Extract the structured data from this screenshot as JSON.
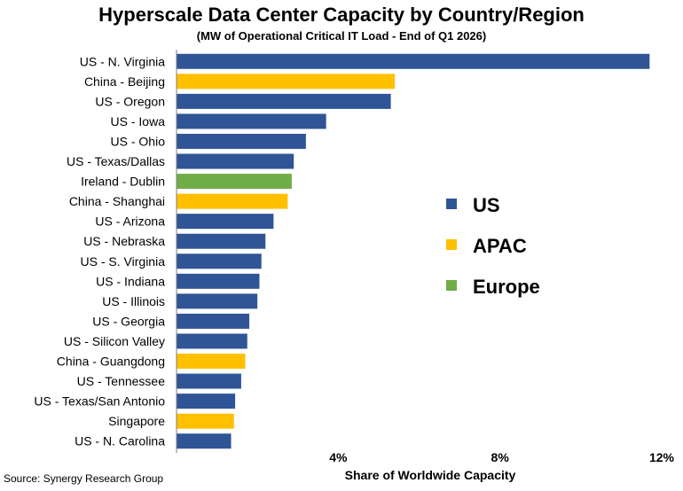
{
  "chart_data": {
    "type": "bar",
    "orientation": "horizontal",
    "title": "Hyperscale Data Center Capacity by Country/Region",
    "subtitle": "(MW of Operational Critical IT Load - End of Q1 2026)",
    "xlabel": "Share of Worldwide Capacity",
    "xlim": [
      0,
      12
    ],
    "x_ticks": [
      {
        "value": 4,
        "label": "4%"
      },
      {
        "value": 8,
        "label": "8%"
      },
      {
        "value": 12,
        "label": "12%"
      }
    ],
    "categories": [
      "US - N. Virginia",
      "China - Beijing",
      "US - Oregon",
      "US - Iowa",
      "US - Ohio",
      "US - Texas/Dallas",
      "Ireland - Dublin",
      "China - Shanghai",
      "US - Arizona",
      "US - Nebraska",
      "US - S. Virginia",
      "US - Indiana",
      "US - Illinois",
      "US - Georgia",
      "US - Silicon Valley",
      "China - Guangdong",
      "US - Tennessee",
      "US - Texas/San Antonio",
      "Singapore",
      "US - N. Carolina"
    ],
    "values": [
      11.7,
      5.4,
      5.3,
      3.7,
      3.2,
      2.9,
      2.85,
      2.75,
      2.4,
      2.2,
      2.1,
      2.05,
      2.0,
      1.8,
      1.75,
      1.7,
      1.6,
      1.45,
      1.42,
      1.35
    ],
    "groups": [
      "US",
      "APAC",
      "US",
      "US",
      "US",
      "US",
      "Europe",
      "APAC",
      "US",
      "US",
      "US",
      "US",
      "US",
      "US",
      "US",
      "APAC",
      "US",
      "US",
      "APAC",
      "US"
    ],
    "legend": {
      "placement": "center-right",
      "entries": [
        {
          "name": "US",
          "color": "#2f5597"
        },
        {
          "name": "APAC",
          "color": "#ffc000"
        },
        {
          "name": "Europe",
          "color": "#70ad47"
        }
      ]
    },
    "grid": false
  },
  "source": "Source: Synergy Research Group"
}
